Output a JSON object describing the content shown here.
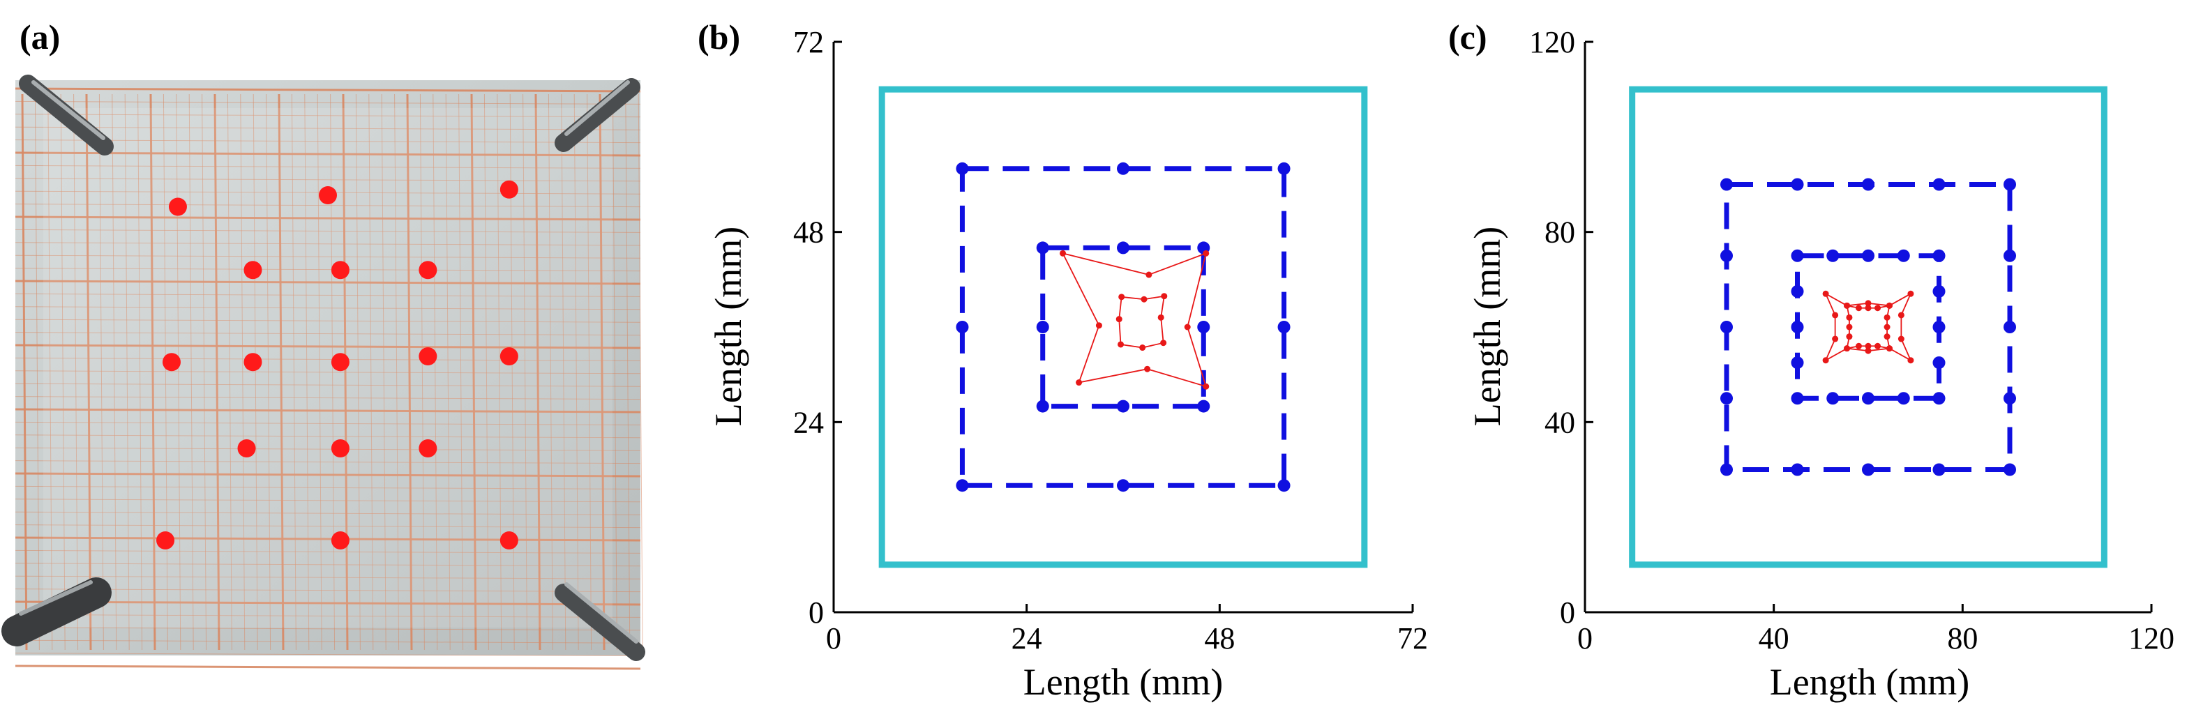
{
  "panels": [
    {
      "label": "(a)"
    },
    {
      "label": "(b)"
    },
    {
      "label": "(c)"
    }
  ],
  "colors": {
    "outer_boundary": "#33c0cc",
    "dots_and_dashed": "#1010e0",
    "simulated_red": "#e81818",
    "photo_marker": "#ff1a1a",
    "photo_grid": "#d88a66",
    "photo_background": "#c9cfcf"
  },
  "photo": {
    "description_icon": "photo-of-membrane-sample",
    "marker_rows": [
      [
        0.26,
        0.22,
        0.5,
        0.2,
        0.79,
        0.19
      ],
      [
        0.38,
        0.33,
        0.52,
        0.33,
        0.66,
        0.33
      ],
      [
        0.25,
        0.49,
        0.38,
        0.49,
        0.52,
        0.49,
        0.66,
        0.48,
        0.79,
        0.48
      ],
      [
        0.37,
        0.64,
        0.52,
        0.64,
        0.66,
        0.64
      ],
      [
        0.24,
        0.8,
        0.52,
        0.8,
        0.79,
        0.8
      ]
    ]
  },
  "chart_data": [
    {
      "type": "scatter",
      "panel": "(b)",
      "xlabel": "Length (mm)",
      "ylabel": "Length (mm)",
      "xlim": [
        0,
        72
      ],
      "ylim": [
        0,
        72
      ],
      "xticks": [
        0,
        24,
        48,
        72
      ],
      "yticks": [
        0,
        24,
        48,
        72
      ],
      "outer_square": [
        6,
        6,
        66,
        66
      ],
      "dashed_squares": [
        {
          "x0": 16,
          "y0": 16,
          "x1": 56,
          "y1": 56,
          "points": [
            [
              16,
              16
            ],
            [
              36,
              16
            ],
            [
              56,
              16
            ],
            [
              16,
              36
            ],
            [
              56,
              36
            ],
            [
              16,
              56
            ],
            [
              36,
              56
            ],
            [
              56,
              56
            ]
          ]
        },
        {
          "x0": 26,
          "y0": 26,
          "x1": 46,
          "y1": 46,
          "points": [
            [
              26,
              26
            ],
            [
              36,
              26
            ],
            [
              46,
              26
            ],
            [
              26,
              36
            ],
            [
              46,
              36
            ],
            [
              26,
              46
            ],
            [
              36,
              46
            ],
            [
              46,
              46
            ]
          ]
        }
      ],
      "red_outer": [
        [
          28.5,
          45.3
        ],
        [
          39.2,
          42.6
        ],
        [
          46.3,
          45.3
        ],
        [
          44.0,
          36.0
        ],
        [
          46.3,
          28.5
        ],
        [
          39.0,
          30.7
        ],
        [
          30.5,
          29.0
        ],
        [
          33.0,
          36.2
        ]
      ],
      "red_inner": [
        [
          35.8,
          39.8
        ],
        [
          38.6,
          39.5
        ],
        [
          41.1,
          39.9
        ],
        [
          40.7,
          37.2
        ],
        [
          41.0,
          34.0
        ],
        [
          38.4,
          33.4
        ],
        [
          35.7,
          33.8
        ],
        [
          35.5,
          37.0
        ]
      ]
    },
    {
      "type": "scatter",
      "panel": "(c)",
      "xlabel": "Length (mm)",
      "ylabel": "Length (mm)",
      "xlim": [
        0,
        120
      ],
      "ylim": [
        0,
        120
      ],
      "xticks": [
        0,
        40,
        80,
        120
      ],
      "yticks": [
        0,
        40,
        80,
        120
      ],
      "outer_square": [
        10,
        10,
        110,
        110
      ],
      "dashed_squares": [
        {
          "x0": 30,
          "y0": 30,
          "x1": 90,
          "y1": 90,
          "points": [
            [
              30,
              30
            ],
            [
              45,
              30
            ],
            [
              60,
              30
            ],
            [
              75,
              30
            ],
            [
              90,
              30
            ],
            [
              30,
              45
            ],
            [
              90,
              45
            ],
            [
              30,
              60
            ],
            [
              90,
              60
            ],
            [
              30,
              75
            ],
            [
              90,
              75
            ],
            [
              30,
              90
            ],
            [
              45,
              90
            ],
            [
              60,
              90
            ],
            [
              75,
              90
            ],
            [
              90,
              90
            ]
          ]
        },
        {
          "x0": 45,
          "y0": 45,
          "x1": 75,
          "y1": 75,
          "points": [
            [
              45,
              45
            ],
            [
              52.5,
              45
            ],
            [
              60,
              45
            ],
            [
              67.5,
              45
            ],
            [
              75,
              45
            ],
            [
              45,
              52.5
            ],
            [
              75,
              52.5
            ],
            [
              45,
              60
            ],
            [
              75,
              60
            ],
            [
              45,
              67.5
            ],
            [
              75,
              67.5
            ],
            [
              45,
              75
            ],
            [
              52.5,
              75
            ],
            [
              60,
              75
            ],
            [
              67.5,
              75
            ],
            [
              75,
              75
            ]
          ]
        }
      ],
      "red_outer": [
        [
          51,
          67
        ],
        [
          55.5,
          64.5
        ],
        [
          60,
          65
        ],
        [
          64.5,
          64.5
        ],
        [
          69,
          67
        ],
        [
          67,
          62.5
        ],
        [
          67,
          57.5
        ],
        [
          69,
          53
        ],
        [
          64.5,
          55.5
        ],
        [
          60,
          55
        ],
        [
          55.5,
          55.5
        ],
        [
          51,
          53
        ],
        [
          53,
          57.5
        ],
        [
          53,
          62.5
        ]
      ],
      "red_inner": [
        [
          55.5,
          64.5
        ],
        [
          58,
          64
        ],
        [
          60,
          64
        ],
        [
          62,
          64
        ],
        [
          64.5,
          64.5
        ],
        [
          64,
          62
        ],
        [
          64,
          60
        ],
        [
          64,
          58
        ],
        [
          64.5,
          55.5
        ],
        [
          62,
          56
        ],
        [
          60,
          56
        ],
        [
          58,
          56
        ],
        [
          55.5,
          55.5
        ],
        [
          56,
          58
        ],
        [
          56,
          60
        ],
        [
          56,
          62
        ]
      ]
    }
  ]
}
